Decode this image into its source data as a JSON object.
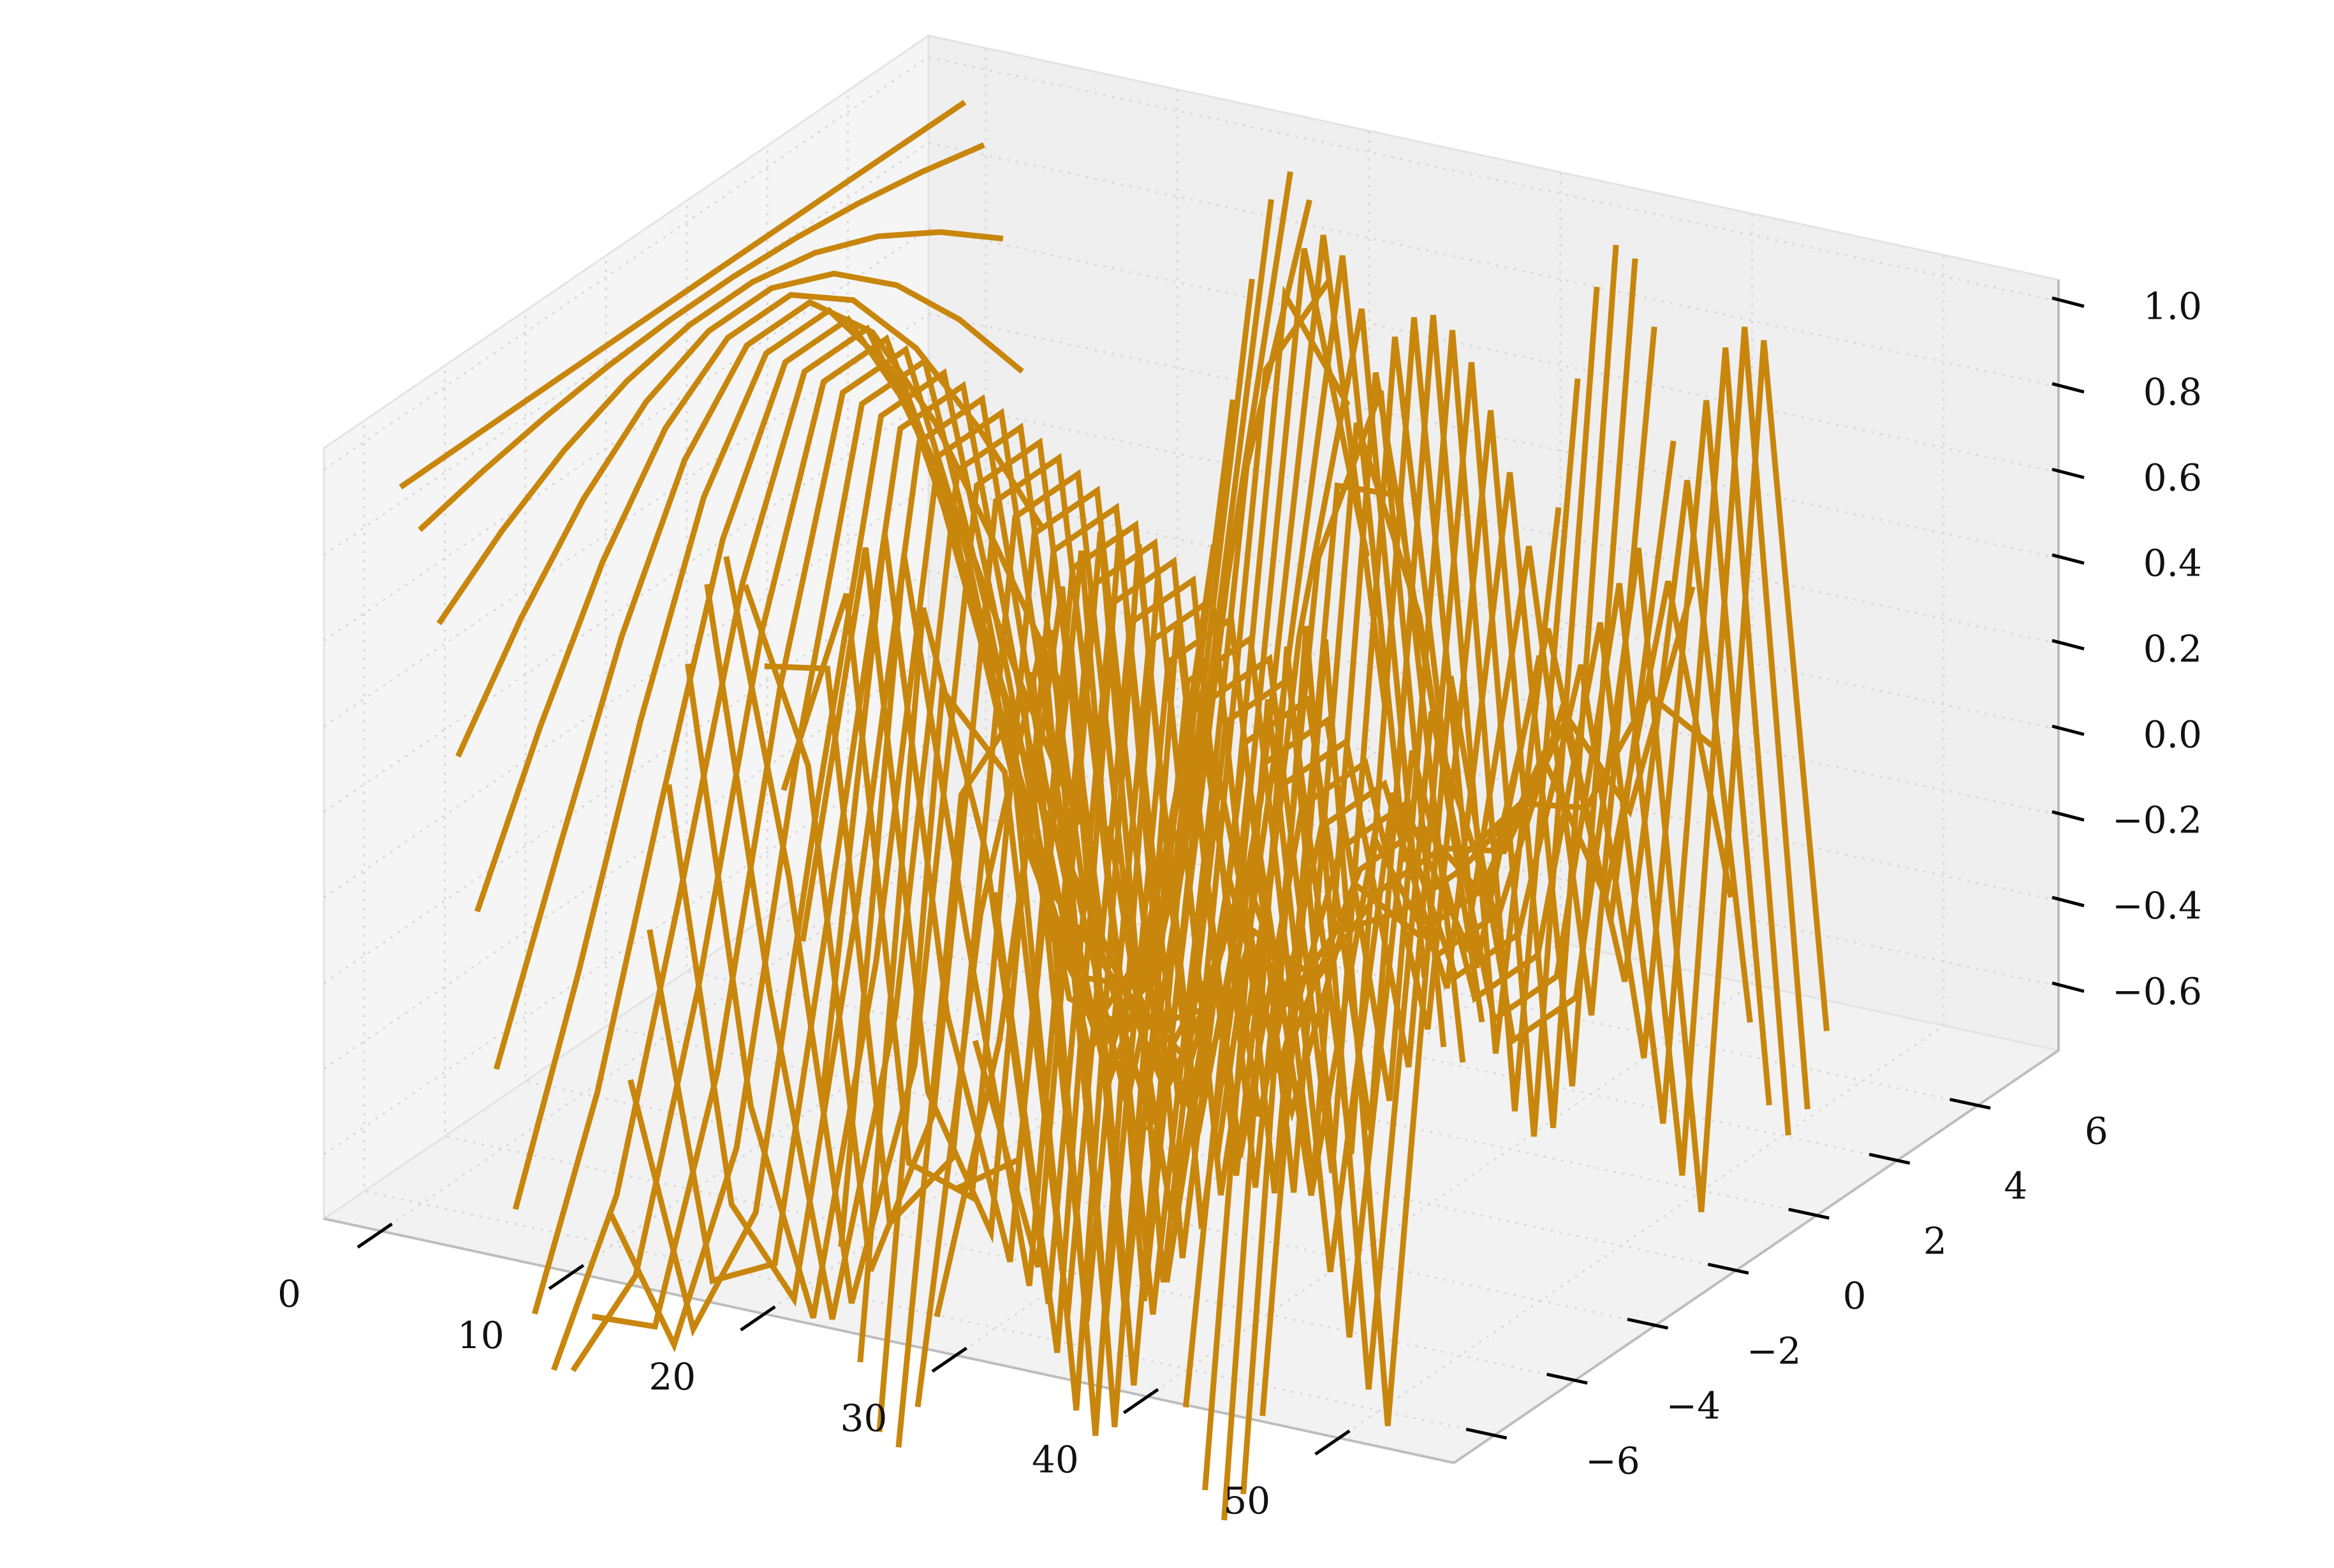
{
  "chart_data": {
    "type": "line",
    "projection": "3d",
    "title": "",
    "xlabel": "",
    "ylabel": "",
    "zlabel": "",
    "grid": true,
    "line_color": "#c8860c",
    "pane_color": "#f2f2f2",
    "xlim": [
      -3,
      56
    ],
    "ylim": [
      -7,
      8
    ],
    "zlim": [
      -0.75,
      1.05
    ],
    "x_ticks": [
      0,
      10,
      20,
      30,
      40,
      50
    ],
    "x_tick_labels": [
      "0",
      "10",
      "20",
      "30",
      "40",
      "50"
    ],
    "y_ticks": [
      -6,
      -4,
      -2,
      0,
      2,
      4,
      6
    ],
    "y_tick_labels": [
      "−6",
      "−4",
      "−2",
      "0",
      "2",
      "4",
      "6"
    ],
    "z_ticks": [
      -0.6,
      -0.4,
      -0.2,
      0.0,
      0.2,
      0.4,
      0.6,
      0.8,
      1.0
    ],
    "z_tick_labels": [
      "−0.6",
      "−0.4",
      "−0.2",
      "0.0",
      "0.2",
      "0.4",
      "0.6",
      "0.8",
      "1.0"
    ],
    "series_count": 46,
    "x_start": 1,
    "x_step": 1,
    "y": [
      -7.0,
      -5.44,
      -3.89,
      -2.33,
      -0.78,
      0.78,
      2.33,
      3.89,
      5.44,
      7.0
    ],
    "z_formula": "z = cos(k * y), k = 0.01 + 0.052 * (i - 1), i = 1..46"
  }
}
